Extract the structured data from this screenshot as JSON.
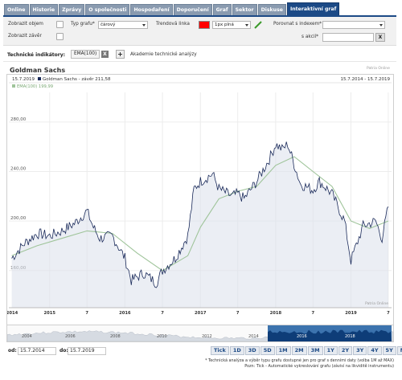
{
  "tabs": [
    {
      "label": "Online",
      "active": false
    },
    {
      "label": "Historie",
      "active": false
    },
    {
      "label": "Zprávy",
      "active": false
    },
    {
      "label": "O společnosti",
      "active": false
    },
    {
      "label": "Hospodaření",
      "active": false
    },
    {
      "label": "Doporučení",
      "active": false
    },
    {
      "label": "Graf",
      "active": false
    },
    {
      "label": "Sektor",
      "active": false
    },
    {
      "label": "Diskuse",
      "active": false
    },
    {
      "label": "Interaktivní graf",
      "active": true
    }
  ],
  "controls": {
    "show_volume_label": "Zobrazit objem",
    "show_close_label": "Zobrazit závěr",
    "chart_type_label": "Typ grafu*",
    "chart_type_value": "čárový",
    "trend_line_label": "Trendová linka",
    "trend_line_color": "#ff0000",
    "trend_line_width": "1px plná",
    "compare_index_label": "Porovnat s indexem*",
    "compare_stock_label": "s akcií*",
    "clear_x": "X"
  },
  "technical": {
    "label": "Technické indikátory:",
    "indicator_tag": "EMA(100)",
    "remove_x": "X",
    "add_plus": "+",
    "academy_text": "Akademie technické analýzy"
  },
  "chart": {
    "title": "Goldman Sachs",
    "source_top": "Patria Online",
    "source_bottom": "Patria Online",
    "legend_date": "15.7.2019",
    "legend_series": "Goldman Sachs - závěr 211,58",
    "legend_ema": "EMA(100) 199,99",
    "range_text": "15.7.2014 - 15.7.2019",
    "y_ticks": [
      "280,00",
      "240,00",
      "200,00",
      "160,00"
    ],
    "x_labels": [
      "2014",
      "2015",
      "7",
      "2016",
      "7",
      "2017",
      "7",
      "2018",
      "7",
      "2019",
      "7"
    ],
    "nav_labels": [
      "2004",
      "2006",
      "2008",
      "2010",
      "2012",
      "2014",
      "2016",
      "2018"
    ],
    "price_color": "#1a2a5a",
    "ema_color": "#9fc49a",
    "area_color": "#dde3ec",
    "navigator_color": "#1a5aa0"
  },
  "chart_data": {
    "type": "line",
    "title": "Goldman Sachs",
    "xlabel": "",
    "ylabel": "",
    "ylim": [
      130,
      300
    ],
    "series": [
      {
        "name": "Goldman Sachs - závěr",
        "x": [
          "2014-07",
          "2014-09",
          "2014-11",
          "2015-01",
          "2015-03",
          "2015-05",
          "2015-07",
          "2015-08",
          "2015-09",
          "2015-11",
          "2016-01",
          "2016-02",
          "2016-04",
          "2016-06",
          "2016-07",
          "2016-09",
          "2016-11",
          "2016-12",
          "2017-01",
          "2017-03",
          "2017-04",
          "2017-06",
          "2017-07",
          "2017-08",
          "2017-10",
          "2017-12",
          "2018-01",
          "2018-02",
          "2018-03",
          "2018-05",
          "2018-07",
          "2018-08",
          "2018-10",
          "2018-12",
          "2019-01",
          "2019-03",
          "2019-05",
          "2019-06",
          "2019-07"
        ],
        "values": [
          170,
          182,
          190,
          188,
          192,
          198,
          208,
          195,
          186,
          188,
          170,
          152,
          158,
          150,
          160,
          170,
          188,
          226,
          232,
          238,
          226,
          220,
          222,
          218,
          232,
          250,
          262,
          258,
          262,
          230,
          225,
          232,
          222,
          200,
          168,
          196,
          200,
          186,
          211.58
        ]
      },
      {
        "name": "EMA(100)",
        "x": [
          "2014-07",
          "2014-11",
          "2015-03",
          "2015-07",
          "2015-11",
          "2016-03",
          "2016-07",
          "2016-11",
          "2017-01",
          "2017-04",
          "2017-07",
          "2017-10",
          "2018-01",
          "2018-04",
          "2018-07",
          "2018-10",
          "2019-01",
          "2019-04",
          "2019-07"
        ],
        "values": [
          172,
          180,
          186,
          192,
          190,
          174,
          160,
          172,
          195,
          218,
          224,
          228,
          245,
          252,
          240,
          228,
          200,
          194,
          199.99
        ]
      }
    ]
  },
  "range": {
    "from_label": "od:",
    "from_value": "15.7.2014",
    "to_label": "do:",
    "to_value": "15.7.2019",
    "buttons": [
      "Tick",
      "1D",
      "3D",
      "5D",
      "1M",
      "2M",
      "3M",
      "1Y",
      "2Y",
      "3Y",
      "4Y",
      "5Y",
      "Max"
    ]
  },
  "footnotes": {
    "line1": "* Technická analýza a výběr typu grafu dostupné jen pro graf s denními daty (volba 1M až MAX)",
    "line2": "Pozn: Tick - Automatické vykreslování grafu (závisí na likviditě instrumentu)"
  }
}
